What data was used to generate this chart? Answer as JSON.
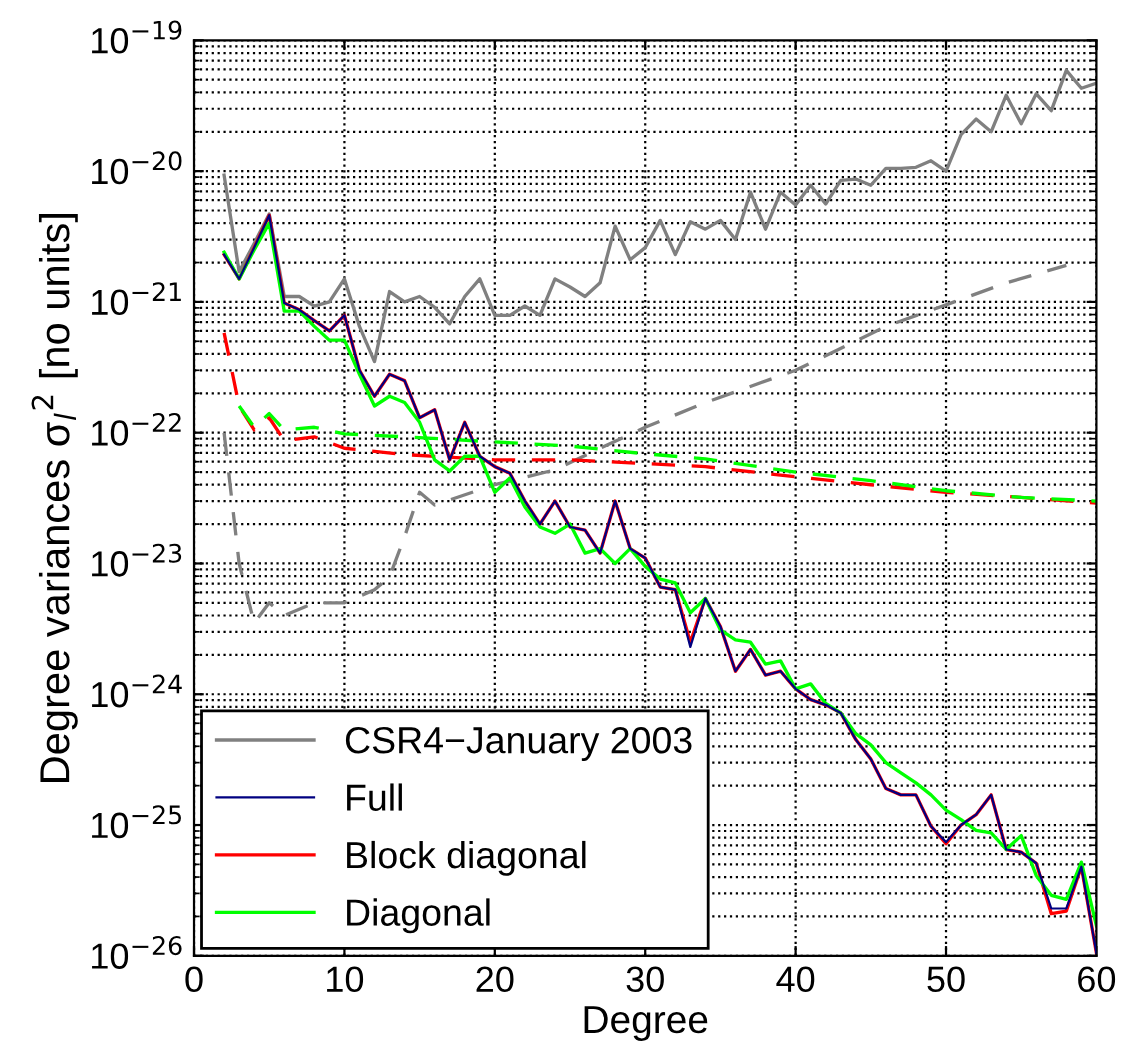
{
  "chart_data": {
    "type": "line",
    "xlabel": "Degree",
    "ylabel": "Degree variances σ$_{l}$$^{2}$ [no units]",
    "log": "y",
    "grid": true,
    "legend": "bottom left",
    "xlim": [
      0,
      60
    ],
    "xticks": [
      0,
      10,
      20,
      30,
      40,
      50,
      60
    ],
    "ylim": [
      1e-26,
      1e-19
    ],
    "yticks": [
      {
        "value": 1e-26,
        "label": "10$^{−26}$"
      },
      {
        "value": 1e-25,
        "label": "10$^{−25}$"
      },
      {
        "value": 1e-24,
        "label": "10$^{−24}$"
      },
      {
        "value": 1e-23,
        "label": "10$^{−23}$"
      },
      {
        "value": 1e-22,
        "label": "10$^{−22}$"
      },
      {
        "value": 1e-21,
        "label": "10$^{−21}$"
      },
      {
        "value": 1e-20,
        "label": "10$^{−20}$"
      },
      {
        "value": 1e-19,
        "label": "10$^{−19}$"
      }
    ],
    "series": [
      {
        "name": "CSR4−January 2003",
        "color": "#808080",
        "line_style": "solid",
        "x": [
          2,
          3,
          4,
          5,
          6,
          7,
          8,
          9,
          10,
          11,
          12,
          13,
          14,
          15,
          16,
          17,
          18,
          19,
          20,
          21,
          22,
          23,
          24,
          25,
          26,
          27,
          28,
          29,
          30,
          31,
          32,
          33,
          34,
          35,
          36,
          37,
          38,
          39,
          40,
          41,
          42,
          43,
          44,
          45,
          46,
          47,
          48,
          49,
          50,
          51,
          52,
          53,
          54,
          55,
          56,
          57,
          58,
          59,
          60
        ],
        "values": [
          9.3e-21,
          1.7e-21,
          2.8e-21,
          4.7e-21,
          1.1e-21,
          1.1e-21,
          9.3e-22,
          1e-21,
          1.5e-21,
          6.5e-22,
          3.5e-22,
          1.2e-21,
          1e-21,
          1.1e-21,
          9.1e-22,
          6.8e-22,
          1.1e-21,
          1.5e-21,
          7.9e-22,
          7.9e-22,
          9.3e-22,
          7.9e-22,
          1.5e-21,
          1.3e-21,
          1.1e-21,
          1.4e-21,
          3.8e-21,
          2.1e-21,
          2.6e-21,
          4.2e-21,
          2.3e-21,
          4.1e-21,
          3.6e-21,
          4.2e-21,
          3e-21,
          6.9e-21,
          3.6e-21,
          6.9e-21,
          5.5e-21,
          7.8e-21,
          5.6e-21,
          8.5e-21,
          8.7e-21,
          7.8e-21,
          1.05e-20,
          1.05e-20,
          1.07e-20,
          1.2e-20,
          1e-20,
          1.9e-20,
          2.5e-20,
          2e-20,
          3.8e-20,
          2.3e-20,
          3.9e-20,
          2.9e-20,
          5.9e-20,
          4.3e-20,
          4.7e-20
        ]
      },
      {
        "color": "#808080",
        "line_style": "dashed",
        "x": [
          2,
          3,
          4,
          5,
          6,
          8,
          10,
          12,
          13,
          14,
          15,
          16,
          20,
          24,
          27,
          30,
          34,
          40,
          46,
          50,
          54,
          58
        ],
        "values": [
          1e-22,
          1e-23,
          3.5e-24,
          5e-24,
          4e-24,
          5e-24,
          5e-24,
          6.3e-24,
          7.9e-24,
          1.6e-23,
          3.5e-23,
          2.8e-23,
          4e-23,
          5.2e-23,
          7.6e-23,
          1.1e-22,
          1.7e-22,
          3e-22,
          6.5e-22,
          9.5e-22,
          1.4e-21,
          1.9e-21
        ]
      },
      {
        "name": "Full",
        "color": "#000080",
        "line_style": "solid",
        "x": [
          2,
          3,
          4,
          5,
          6,
          7,
          8,
          9,
          10,
          11,
          12,
          13,
          14,
          15,
          16,
          17,
          18,
          19,
          20,
          21,
          22,
          23,
          24,
          25,
          26,
          27,
          28,
          29,
          30,
          31,
          32,
          33,
          34,
          35,
          36,
          37,
          38,
          39,
          40,
          41,
          42,
          43,
          44,
          45,
          46,
          47,
          48,
          49,
          50,
          51,
          52,
          53,
          54,
          55,
          56,
          57,
          58,
          59,
          60
        ],
        "values": [
          2.3e-21,
          1.5e-21,
          2.6e-21,
          4.6e-21,
          9.8e-22,
          8.7e-22,
          7.2e-22,
          6e-22,
          7.9e-22,
          3e-22,
          1.9e-22,
          2.8e-22,
          2.5e-22,
          1.3e-22,
          1.5e-22,
          6.2e-23,
          1.2e-22,
          6.6e-23,
          5.5e-23,
          4.9e-23,
          3e-23,
          2e-23,
          3e-23,
          1.9e-23,
          1.8e-23,
          1.2e-23,
          3e-23,
          1.3e-23,
          1.1e-23,
          6.6e-24,
          6.3e-24,
          2.3e-24,
          5.4e-24,
          3.3e-24,
          1.5e-24,
          2.2e-24,
          1.4e-24,
          1.5e-24,
          1.1e-24,
          9.1e-25,
          8.3e-25,
          7.2e-25,
          4.5e-25,
          3.2e-25,
          1.9e-25,
          1.7e-25,
          1.7e-25,
          9.8e-26,
          7.4e-26,
          1e-25,
          1.2e-25,
          1.7e-25,
          6.5e-26,
          6.2e-26,
          5.1e-26,
          2.3e-26,
          2.3e-26,
          4.8e-26,
          1.05e-26
        ]
      },
      {
        "name": "Block diagonal",
        "color": "#ff0000",
        "line_style": "solid",
        "x": [
          2,
          3,
          4,
          5,
          6,
          7,
          8,
          9,
          10,
          11,
          12,
          13,
          14,
          15,
          16,
          17,
          18,
          19,
          20,
          21,
          22,
          23,
          24,
          25,
          26,
          27,
          28,
          29,
          30,
          31,
          32,
          33,
          34,
          35,
          36,
          37,
          38,
          39,
          40,
          41,
          42,
          43,
          44,
          45,
          46,
          47,
          48,
          49,
          50,
          51,
          52,
          53,
          54,
          55,
          56,
          57,
          58,
          59,
          60
        ],
        "values": [
          2.3e-21,
          1.5e-21,
          2.6e-21,
          4.6e-21,
          9.8e-22,
          8.7e-22,
          7.2e-22,
          6e-22,
          7.9e-22,
          3e-22,
          1.9e-22,
          2.8e-22,
          2.5e-22,
          1.3e-22,
          1.5e-22,
          6.2e-23,
          1.2e-22,
          6.6e-23,
          5.5e-23,
          4.9e-23,
          3e-23,
          2e-23,
          3e-23,
          1.9e-23,
          1.8e-23,
          1.2e-23,
          3e-23,
          1.3e-23,
          1.1e-23,
          6.6e-24,
          6.3e-24,
          2.5e-24,
          5.4e-24,
          3.3e-24,
          1.5e-24,
          2.2e-24,
          1.4e-24,
          1.5e-24,
          1.1e-24,
          9.1e-25,
          8.3e-25,
          7.2e-25,
          4.5e-25,
          3.2e-25,
          1.9e-25,
          1.7e-25,
          1.7e-25,
          9.8e-26,
          7.2e-26,
          1e-25,
          1.2e-25,
          1.7e-25,
          6.5e-26,
          6.2e-26,
          5.1e-26,
          2.1e-26,
          2.2e-26,
          4.8e-26,
          1.05e-26
        ]
      },
      {
        "color": "#ff0000",
        "line_style": "dashed",
        "x": [
          2,
          3,
          4,
          5,
          6,
          8,
          10,
          14,
          20,
          25,
          30,
          34,
          40,
          45,
          50,
          55,
          60
        ],
        "values": [
          5.8e-22,
          1.6e-22,
          1.05e-22,
          1.3e-22,
          8.7e-23,
          9.3e-23,
          7.6e-23,
          6.8e-23,
          6.2e-23,
          6.2e-23,
          5.8e-23,
          5.5e-23,
          4.6e-23,
          4e-23,
          3.5e-23,
          3.2e-23,
          2.9e-23
        ]
      },
      {
        "name": "Diagonal",
        "color": "#00ff00",
        "line_style": "solid",
        "x": [
          2,
          3,
          4,
          5,
          6,
          7,
          8,
          9,
          10,
          11,
          12,
          13,
          14,
          15,
          16,
          17,
          18,
          19,
          20,
          21,
          22,
          23,
          24,
          25,
          26,
          27,
          28,
          29,
          30,
          31,
          32,
          33,
          34,
          35,
          36,
          37,
          38,
          39,
          40,
          41,
          42,
          43,
          44,
          45,
          46,
          47,
          48,
          49,
          50,
          51,
          52,
          53,
          54,
          55,
          56,
          57,
          58,
          59,
          60
        ],
        "values": [
          2.4e-21,
          1.5e-21,
          2.5e-21,
          4e-21,
          8.5e-22,
          8.5e-22,
          6.5e-22,
          5.1e-22,
          5.1e-22,
          2.8e-22,
          1.6e-22,
          1.9e-22,
          1.7e-22,
          1.2e-22,
          6.2e-23,
          5.1e-23,
          6.6e-23,
          6.6e-23,
          3.5e-23,
          4.5e-23,
          2.7e-23,
          1.9e-23,
          1.7e-23,
          2e-23,
          1.2e-23,
          1.3e-23,
          1e-23,
          1.3e-23,
          9.5e-24,
          7.6e-24,
          7.1e-24,
          4.2e-24,
          5.4e-24,
          3.1e-24,
          2.6e-24,
          2.5e-24,
          1.7e-24,
          1.8e-24,
          1.1e-24,
          1.2e-24,
          8.5e-25,
          7.2e-25,
          5e-25,
          4.1e-25,
          3e-25,
          2.5e-25,
          2.1e-25,
          1.7e-25,
          1.3e-25,
          1.1e-25,
          9.1e-26,
          8.7e-26,
          6.5e-26,
          8.3e-26,
          4.1e-26,
          2.9e-26,
          2.7e-26,
          5.2e-26,
          1.7e-26
        ]
      },
      {
        "color": "#00ff00",
        "line_style": "dashed",
        "x": [
          3,
          4,
          5,
          6,
          8,
          10,
          14,
          20,
          25,
          30,
          34,
          40,
          45,
          50,
          55,
          60
        ],
        "values": [
          1.6e-22,
          1.1e-22,
          1.4e-22,
          1.05e-22,
          1.1e-22,
          9.8e-23,
          9.3e-23,
          8.5e-23,
          7.9e-23,
          6.9e-23,
          6.3e-23,
          5e-23,
          4.3e-23,
          3.6e-23,
          3.2e-23,
          3e-23
        ]
      }
    ]
  }
}
